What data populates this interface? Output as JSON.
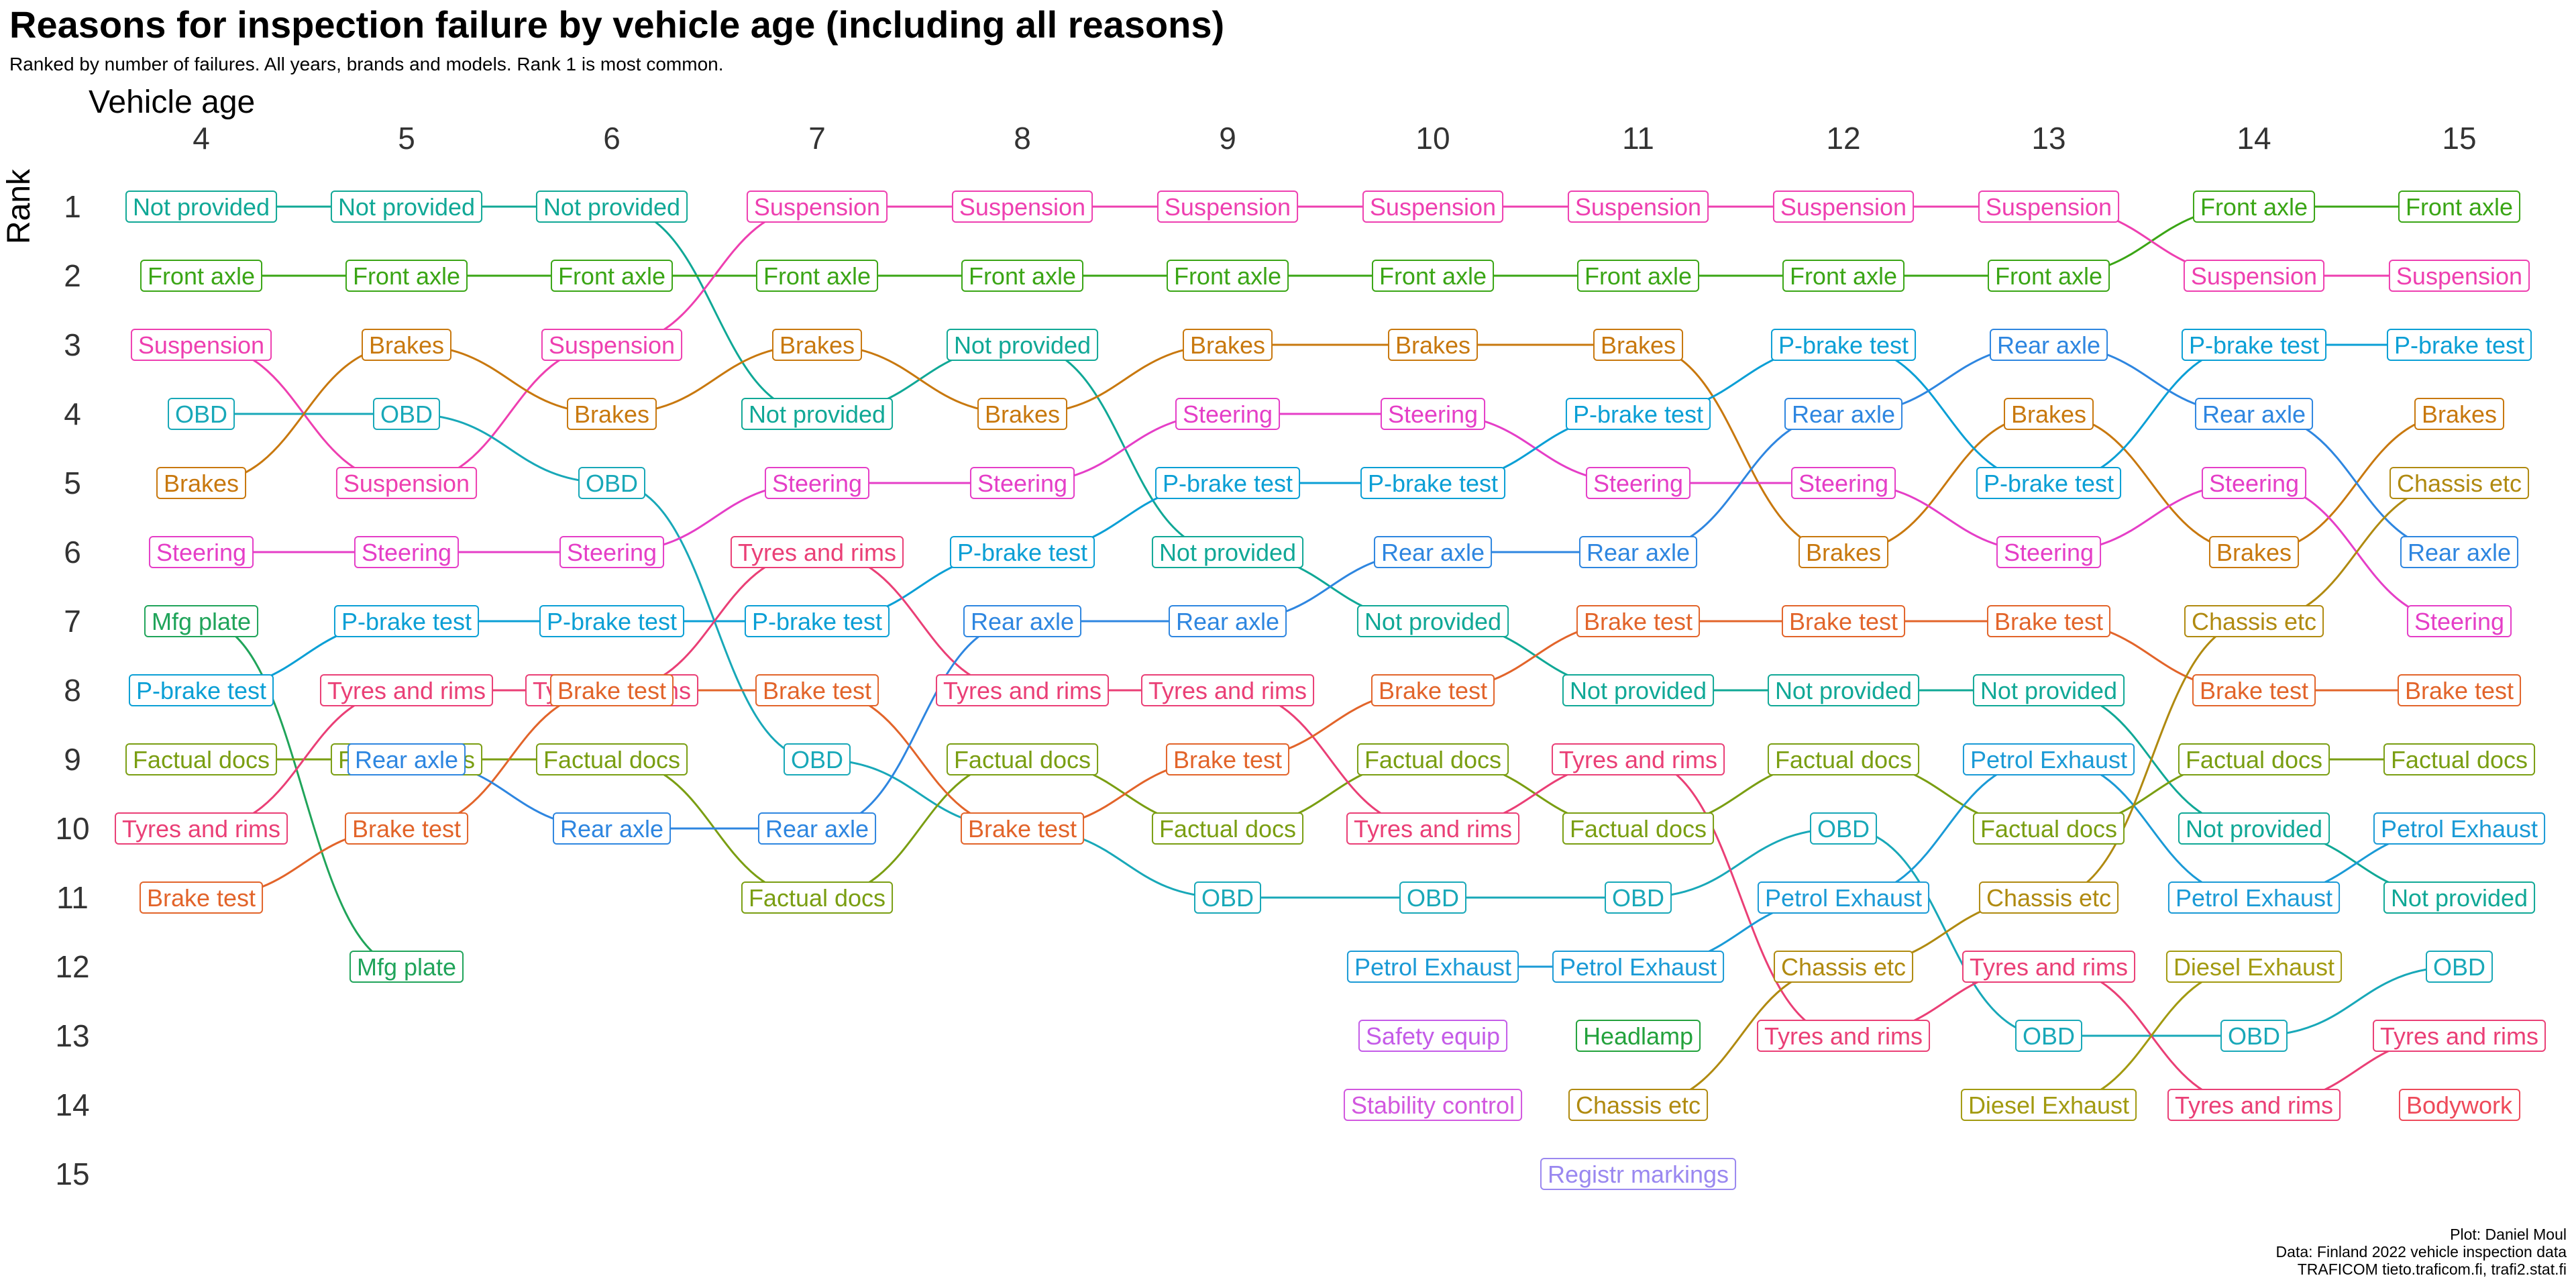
{
  "chart_data": {
    "type": "bump",
    "title": "Reasons for inspection failure by vehicle age (including all reasons)",
    "subtitle": "Ranked by number of failures. All years, brands and models. Rank 1 is most common.",
    "xlabel": "Vehicle age",
    "ylabel": "Rank",
    "x": [
      4,
      5,
      6,
      7,
      8,
      9,
      10,
      11,
      12,
      13,
      14,
      15
    ],
    "y_ticks": [
      1,
      2,
      3,
      4,
      5,
      6,
      7,
      8,
      9,
      10,
      11,
      12,
      13,
      14,
      15
    ],
    "series": [
      {
        "name": "Not provided",
        "color": "#10a896",
        "ranks": [
          1,
          1,
          1,
          4,
          3,
          6,
          7,
          8,
          8,
          8,
          10,
          11
        ]
      },
      {
        "name": "Front axle",
        "color": "#3aa515",
        "ranks": [
          2,
          2,
          2,
          2,
          2,
          2,
          2,
          2,
          2,
          2,
          1,
          1
        ]
      },
      {
        "name": "Suspension",
        "color": "#ee3fb0",
        "ranks": [
          3,
          5,
          3,
          1,
          1,
          1,
          1,
          1,
          1,
          1,
          2,
          2
        ]
      },
      {
        "name": "OBD",
        "color": "#18a8b8",
        "ranks": [
          4,
          4,
          5,
          9,
          10,
          11,
          11,
          11,
          10,
          13,
          13,
          12
        ]
      },
      {
        "name": "Brakes",
        "color": "#c8780e",
        "ranks": [
          5,
          3,
          4,
          3,
          4,
          3,
          3,
          3,
          6,
          4,
          6,
          4
        ]
      },
      {
        "name": "Steering",
        "color": "#e53ec7",
        "ranks": [
          6,
          6,
          6,
          5,
          5,
          4,
          4,
          5,
          5,
          6,
          5,
          7
        ]
      },
      {
        "name": "Mfg plate",
        "color": "#20a45a",
        "ranks": [
          7,
          12,
          null,
          null,
          null,
          null,
          null,
          null,
          null,
          null,
          null,
          null
        ]
      },
      {
        "name": "P-brake test",
        "color": "#0a9fd5",
        "ranks": [
          8,
          7,
          7,
          7,
          6,
          5,
          5,
          4,
          3,
          5,
          3,
          3
        ]
      },
      {
        "name": "Factual docs",
        "color": "#7a9e12",
        "ranks": [
          9,
          9,
          9,
          11,
          9,
          10,
          9,
          10,
          9,
          10,
          9,
          9
        ]
      },
      {
        "name": "Tyres and rims",
        "color": "#ea3f76",
        "ranks": [
          10,
          8,
          8,
          6,
          8,
          8,
          10,
          9,
          13,
          12,
          14,
          13
        ]
      },
      {
        "name": "Brake test",
        "color": "#e2642a",
        "ranks": [
          11,
          10,
          8,
          8,
          10,
          9,
          8,
          7,
          7,
          7,
          8,
          8
        ]
      },
      {
        "name": "Rear axle",
        "color": "#2e86e0",
        "ranks": [
          null,
          9,
          10,
          10,
          7,
          7,
          6,
          6,
          4,
          3,
          4,
          6
        ]
      },
      {
        "name": "Petrol Exhaust",
        "color": "#1a9ad6",
        "ranks": [
          null,
          null,
          null,
          null,
          null,
          null,
          12,
          12,
          11,
          9,
          11,
          10
        ]
      },
      {
        "name": "Chassis etc",
        "color": "#b08a10",
        "ranks": [
          null,
          null,
          null,
          null,
          null,
          null,
          null,
          14,
          12,
          11,
          7,
          5
        ]
      },
      {
        "name": "Diesel Exhaust",
        "color": "#a29a10",
        "ranks": [
          null,
          null,
          null,
          null,
          null,
          null,
          null,
          null,
          null,
          14,
          12,
          null
        ]
      },
      {
        "name": "Safety equip",
        "color": "#c45be8",
        "ranks": [
          null,
          null,
          null,
          null,
          null,
          null,
          13,
          null,
          null,
          null,
          null,
          null
        ]
      },
      {
        "name": "Stability control",
        "color": "#d257df",
        "ranks": [
          null,
          null,
          null,
          null,
          null,
          null,
          14,
          null,
          null,
          null,
          null,
          null
        ]
      },
      {
        "name": "Headlamp",
        "color": "#23a23c",
        "ranks": [
          null,
          null,
          null,
          null,
          null,
          null,
          null,
          13,
          null,
          null,
          null,
          null
        ]
      },
      {
        "name": "Registr markings",
        "color": "#9a88f0",
        "ranks": [
          null,
          null,
          null,
          null,
          null,
          null,
          null,
          15,
          null,
          null,
          null,
          null
        ]
      },
      {
        "name": "Bodywork",
        "color": "#ee4a5a",
        "ranks": [
          null,
          null,
          null,
          null,
          null,
          null,
          null,
          null,
          null,
          null,
          null,
          14
        ]
      }
    ],
    "caption": [
      "Plot: Daniel Moul",
      "Data: Finland 2022 vehicle inspection data",
      "TRAFICOM tieto.traficom.fi, trafi2.stat.fi"
    ]
  }
}
